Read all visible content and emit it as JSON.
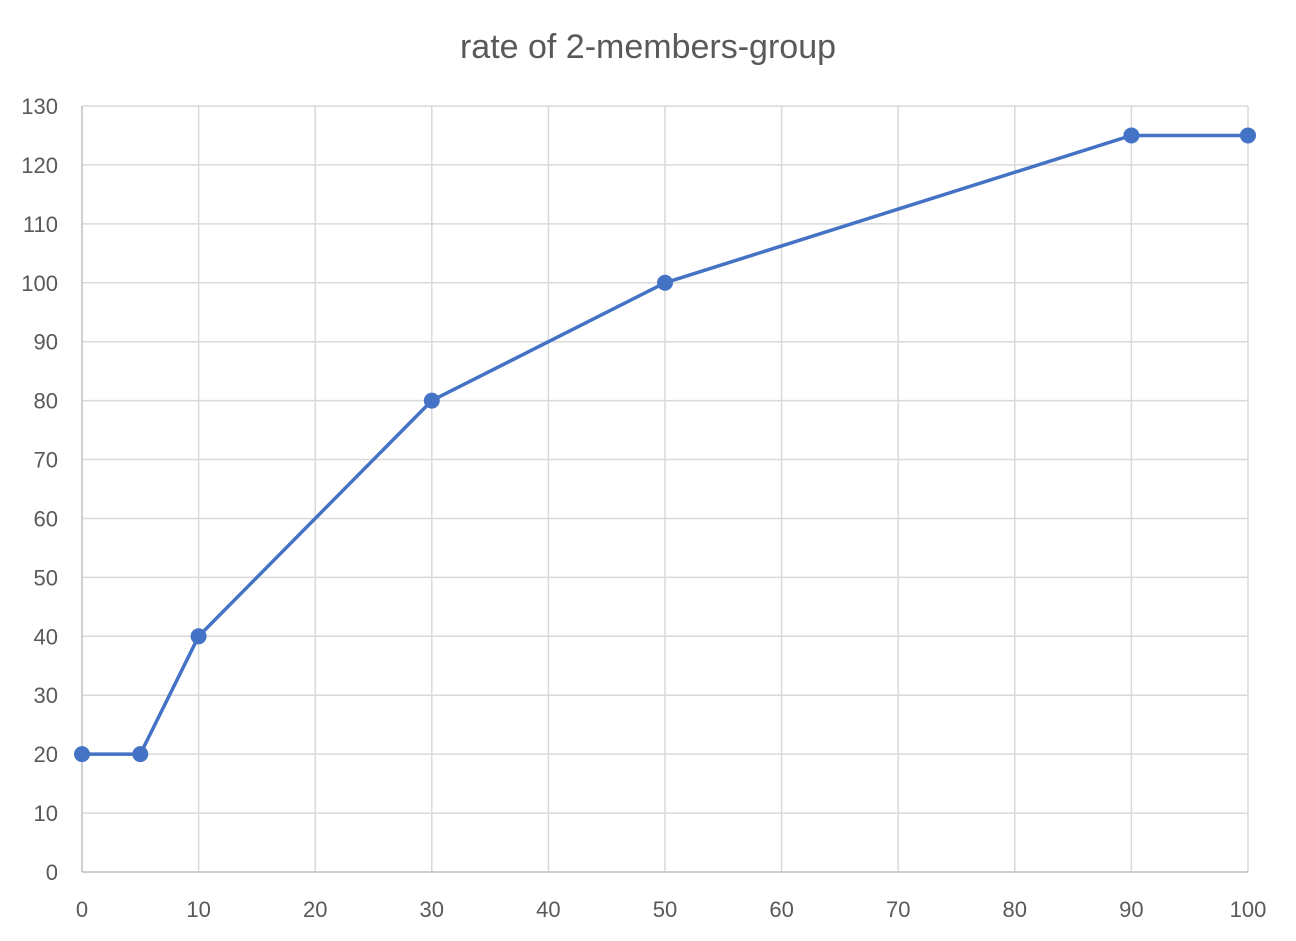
{
  "chart_data": {
    "type": "scatter",
    "title": "rate of 2-members-group",
    "xlabel": "",
    "ylabel": "",
    "xlim": [
      0,
      100
    ],
    "ylim": [
      0,
      130
    ],
    "x_ticks": [
      0,
      10,
      20,
      30,
      40,
      50,
      60,
      70,
      80,
      90,
      100
    ],
    "y_ticks": [
      0,
      10,
      20,
      30,
      40,
      50,
      60,
      70,
      80,
      90,
      100,
      110,
      120,
      130
    ],
    "grid": true,
    "legend": "none",
    "series": [
      {
        "color": "#4472c4",
        "style": "line-with-markers",
        "points": [
          {
            "x": 0,
            "y": 20
          },
          {
            "x": 5,
            "y": 20
          },
          {
            "x": 10,
            "y": 40
          },
          {
            "x": 30,
            "y": 80
          },
          {
            "x": 50,
            "y": 100
          },
          {
            "x": 90,
            "y": 125
          },
          {
            "x": 100,
            "y": 125
          }
        ]
      }
    ]
  }
}
